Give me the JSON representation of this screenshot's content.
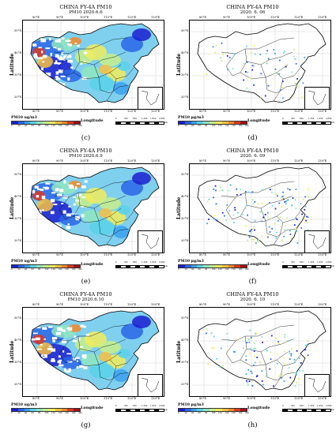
{
  "panels": [
    {
      "id": "c",
      "title1": "CHINA FY-4A PM10",
      "title2": "PM10 2020.6.6",
      "label": "(c)",
      "mode": "field",
      "unit": "PM10 ug/m3",
      "xlabel": "Longitude",
      "ylabel": "Latitude"
    },
    {
      "id": "d",
      "title1": "CHINA FY-4A PM10",
      "title2": "2020. 6. 06",
      "label": "(d)",
      "mode": "stations",
      "unit": "PM10 μg/m3",
      "xlabel": "Longitude",
      "ylabel": "Latitude"
    },
    {
      "id": "e",
      "title1": "CHINA FY-4A PM10",
      "title2": "PM10 2020.6.9",
      "label": "(e)",
      "mode": "field",
      "unit": "PM10 ug/m3",
      "xlabel": "Longitude",
      "ylabel": "Latitude"
    },
    {
      "id": "f",
      "title1": "CHINA FY-4A PM10",
      "title2": "2020. 6. 09",
      "label": "(f)",
      "mode": "stations",
      "unit": "PM10 μg/m3",
      "xlabel": "Longitude",
      "ylabel": "Latitude"
    },
    {
      "id": "g",
      "title1": "CHINA FY-4A PM10",
      "title2": "PM10 2020.6.10",
      "label": "(g)",
      "mode": "field",
      "unit": "PM10 ug/m3",
      "xlabel": "Longitude",
      "ylabel": "Latitude"
    },
    {
      "id": "h",
      "title1": "CHINA FY-4A PM10",
      "title2": "2020. 6. 10",
      "label": "(h)",
      "mode": "stations",
      "unit": "PM10 μg/m3",
      "xlabel": "Longitude",
      "ylabel": "Latitude"
    }
  ],
  "lon_ticks": [
    "80°E",
    "90°E",
    "100°E",
    "110°E",
    "120°E",
    "130°E"
  ],
  "lat_ticks": [
    "50°N",
    "40°N",
    "30°N",
    "20°N"
  ],
  "colorbar_ticks": [
    "0",
    "20",
    "40",
    "60",
    "80",
    "100",
    "120",
    "140",
    "160",
    "180",
    "200"
  ],
  "colorbar_colors": [
    "#1b1fd0",
    "#2a66e8",
    "#3aa0f0",
    "#59d2e8",
    "#8fe6c0",
    "#c8ef8a",
    "#f2ec5a",
    "#f7c040",
    "#f08a2c",
    "#dd3a22",
    "#a50f15"
  ],
  "scale_labels": [
    "0",
    "325",
    "650",
    "1,300",
    "1,950",
    "2,600"
  ],
  "scale_unit": "km",
  "colors": {
    "land_base": "#7fd0ef",
    "border": "#000000",
    "background": "#ffffff"
  }
}
